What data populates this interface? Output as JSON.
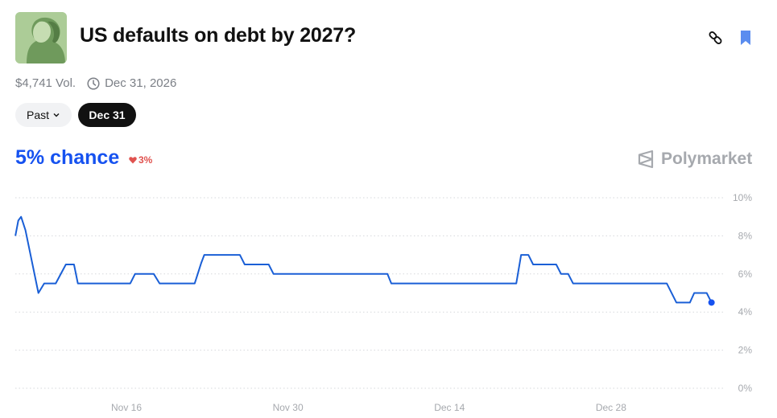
{
  "header": {
    "title": "US defaults on debt by 2027?",
    "thumbnail_icon": "portrait-banknote-image",
    "link_icon": "link-icon",
    "bookmark_icon": "bookmark-icon",
    "bookmark_color": "#5b8def"
  },
  "meta": {
    "volume": "$4,741 Vol.",
    "end_date": "Dec 31, 2026"
  },
  "filters": {
    "past_label": "Past",
    "selected_date": "Dec 31"
  },
  "summary": {
    "chance": "5% chance",
    "change": "3%",
    "change_direction": "down",
    "accent_color": "#1652f0",
    "change_color": "#e0524f"
  },
  "brand": {
    "name": "Polymarket"
  },
  "chart_data": {
    "type": "line",
    "title": "",
    "xlabel": "",
    "ylabel": "",
    "ylim": [
      0,
      10
    ],
    "yticks": [
      "10%",
      "8%",
      "6%",
      "4%",
      "2%",
      "0%"
    ],
    "ytick_values": [
      10,
      8,
      6,
      4,
      2,
      0
    ],
    "xticks": [
      "Nov 16",
      "Nov 30",
      "Dec 14",
      "Dec 28"
    ],
    "xtick_dates": [
      "2025-11-16",
      "2025-11-30",
      "2025-12-14",
      "2025-12-28"
    ],
    "grid": true,
    "line_color": "#1a5fd6",
    "x": [
      "2025-11-06T09:00",
      "2025-11-06T15:00",
      "2025-11-06T21:00",
      "2025-11-07T06:00",
      "2025-11-08T09:00",
      "2025-11-08T21:00",
      "2025-11-09T21:00",
      "2025-11-10T18:00",
      "2025-11-11T11:00",
      "2025-11-11T19:00",
      "2025-11-16T08:00",
      "2025-11-16T18:00",
      "2025-11-18T09:00",
      "2025-11-18T21:00",
      "2025-11-21T22:00",
      "2025-11-22T12:00",
      "2025-11-22T18:00",
      "2025-11-25T20:00",
      "2025-11-26T06:00",
      "2025-11-28T08:00",
      "2025-11-28T18:00",
      "2025-12-08T15:00",
      "2025-12-08T23:00",
      "2025-12-19T19:00",
      "2025-12-20T05:00",
      "2025-12-20T20:00",
      "2025-12-21T06:00",
      "2025-12-23T06:00",
      "2025-12-23T16:00",
      "2025-12-24T07:00",
      "2025-12-24T17:00",
      "2026-01-01T20:00",
      "2026-01-02T16:00",
      "2026-01-03T20:00",
      "2026-01-04T05:00",
      "2026-01-05T07:00",
      "2026-01-05T17:00"
    ],
    "values": [
      8.0,
      8.8,
      9.0,
      8.3,
      5.0,
      5.5,
      5.5,
      6.5,
      6.5,
      5.5,
      5.5,
      6.0,
      6.0,
      5.5,
      5.5,
      6.6,
      7.0,
      7.0,
      6.5,
      6.5,
      6.0,
      6.0,
      5.5,
      5.5,
      7.0,
      7.0,
      6.5,
      6.5,
      6.0,
      6.0,
      5.5,
      5.5,
      4.5,
      4.5,
      5.0,
      5.0,
      4.5
    ]
  }
}
